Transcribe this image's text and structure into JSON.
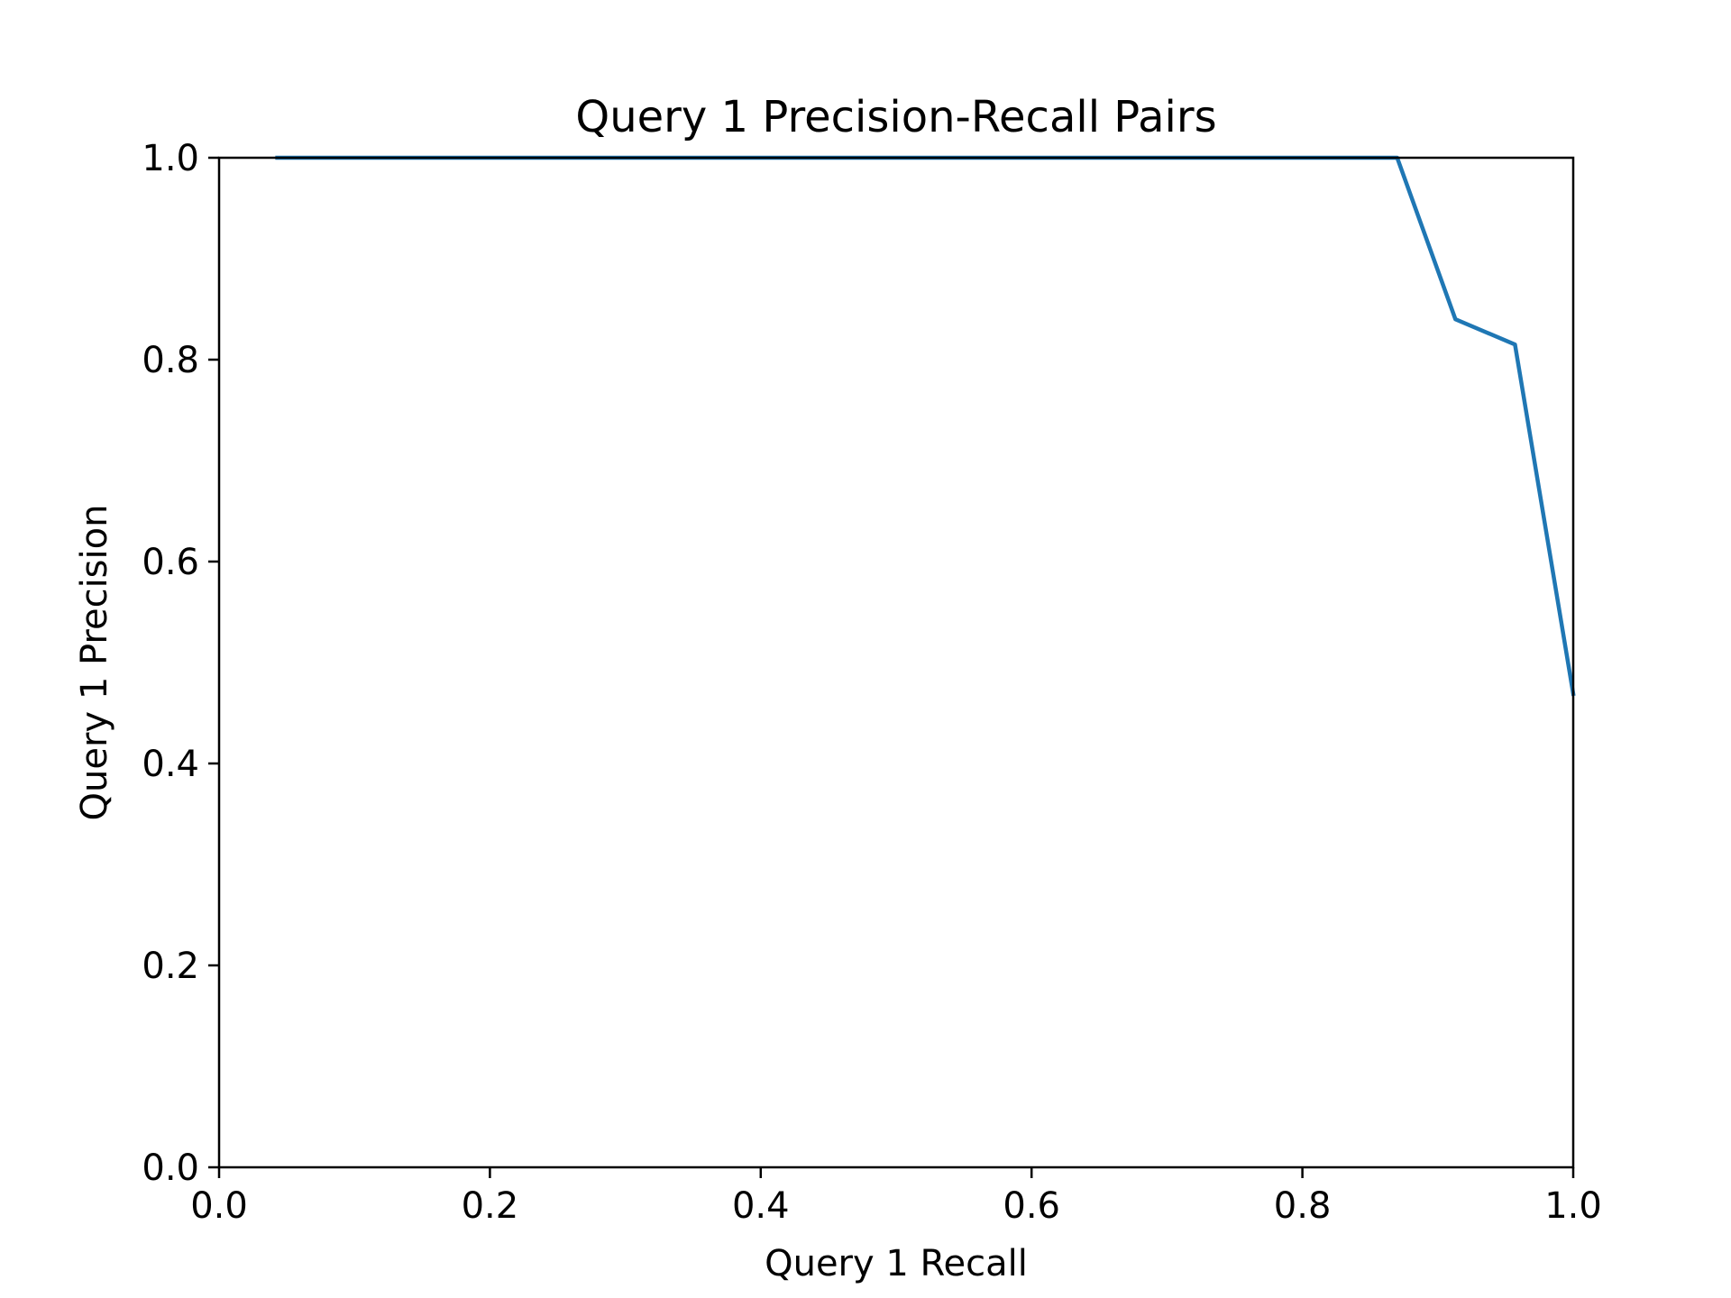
{
  "chart_data": {
    "type": "line",
    "title": "Query 1 Precision-Recall Pairs",
    "xlabel": "Query 1 Recall",
    "ylabel": "Query 1 Precision",
    "xlim": [
      0.0,
      1.0
    ],
    "ylim": [
      0.0,
      1.0
    ],
    "xticks": [
      "0.0",
      "0.2",
      "0.4",
      "0.6",
      "0.8",
      "1.0"
    ],
    "yticks": [
      "0.0",
      "0.2",
      "0.4",
      "0.6",
      "0.8",
      "1.0"
    ],
    "grid": false,
    "legend": "none",
    "series": [
      {
        "color": "#1f77b4",
        "x": [
          0.043,
          0.087,
          0.13,
          0.174,
          0.217,
          0.261,
          0.304,
          0.348,
          0.391,
          0.435,
          0.478,
          0.522,
          0.565,
          0.609,
          0.652,
          0.696,
          0.739,
          0.783,
          0.826,
          0.87,
          0.913,
          0.957,
          1.0
        ],
        "y": [
          1.0,
          1.0,
          1.0,
          1.0,
          1.0,
          1.0,
          1.0,
          1.0,
          1.0,
          1.0,
          1.0,
          1.0,
          1.0,
          1.0,
          1.0,
          1.0,
          1.0,
          1.0,
          1.0,
          1.0,
          0.84,
          0.815,
          0.469
        ]
      }
    ]
  }
}
